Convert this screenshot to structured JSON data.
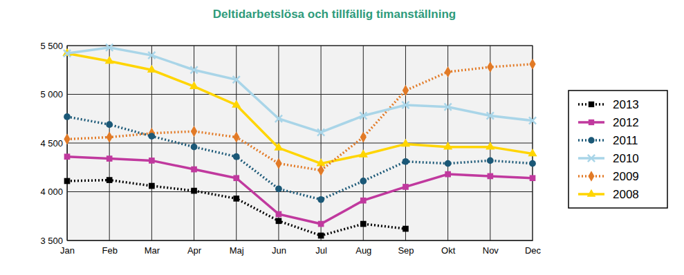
{
  "chart_data": {
    "type": "line",
    "title": "Deltidarbetslösa och tillfällig timanställning",
    "categories": [
      "Jan",
      "Feb",
      "Mar",
      "Apr",
      "Maj",
      "Jun",
      "Jul",
      "Aug",
      "Sep",
      "Okt",
      "Nov",
      "Dec"
    ],
    "ylim": [
      3500,
      5500
    ],
    "yticks": [
      {
        "value": 3500,
        "label": "3 500"
      },
      {
        "value": 4000,
        "label": "4 000"
      },
      {
        "value": 4500,
        "label": "4 500"
      },
      {
        "value": 5000,
        "label": "5 000"
      },
      {
        "value": 5500,
        "label": "5 500"
      }
    ],
    "grid": true,
    "legend": "right",
    "series": [
      {
        "name": "2013",
        "color": "#000000",
        "marker": "square",
        "line_style": "dotted",
        "values": [
          4110,
          4120,
          4060,
          4010,
          3930,
          3700,
          3550,
          3670,
          3620,
          null,
          null,
          null
        ]
      },
      {
        "name": "2012",
        "color": "#c0399e",
        "marker": "square",
        "line_style": "solid",
        "values": [
          4360,
          4340,
          4320,
          4230,
          4140,
          3770,
          3670,
          3910,
          4050,
          4180,
          4160,
          4140
        ]
      },
      {
        "name": "2011",
        "color": "#1b5877",
        "marker": "circle",
        "line_style": "dotted",
        "values": [
          4770,
          4690,
          4570,
          4460,
          4360,
          4030,
          3920,
          4110,
          4310,
          4290,
          4320,
          4290
        ]
      },
      {
        "name": "2010",
        "color": "#a9d5e8",
        "marker": "x",
        "line_style": "solid",
        "values": [
          5420,
          5480,
          5400,
          5250,
          5150,
          4750,
          4610,
          4780,
          4890,
          4870,
          4780,
          4730
        ]
      },
      {
        "name": "2009",
        "color": "#e27a26",
        "marker": "diamond",
        "line_style": "dotted",
        "values": [
          4540,
          4560,
          4600,
          4620,
          4560,
          4290,
          4220,
          4560,
          5040,
          5230,
          5280,
          5310
        ]
      },
      {
        "name": "2008",
        "color": "#ffd500",
        "marker": "triangle",
        "line_style": "solid",
        "values": [
          5420,
          5340,
          5250,
          5080,
          4890,
          4450,
          4290,
          4380,
          4490,
          4460,
          4460,
          4390
        ]
      }
    ]
  }
}
